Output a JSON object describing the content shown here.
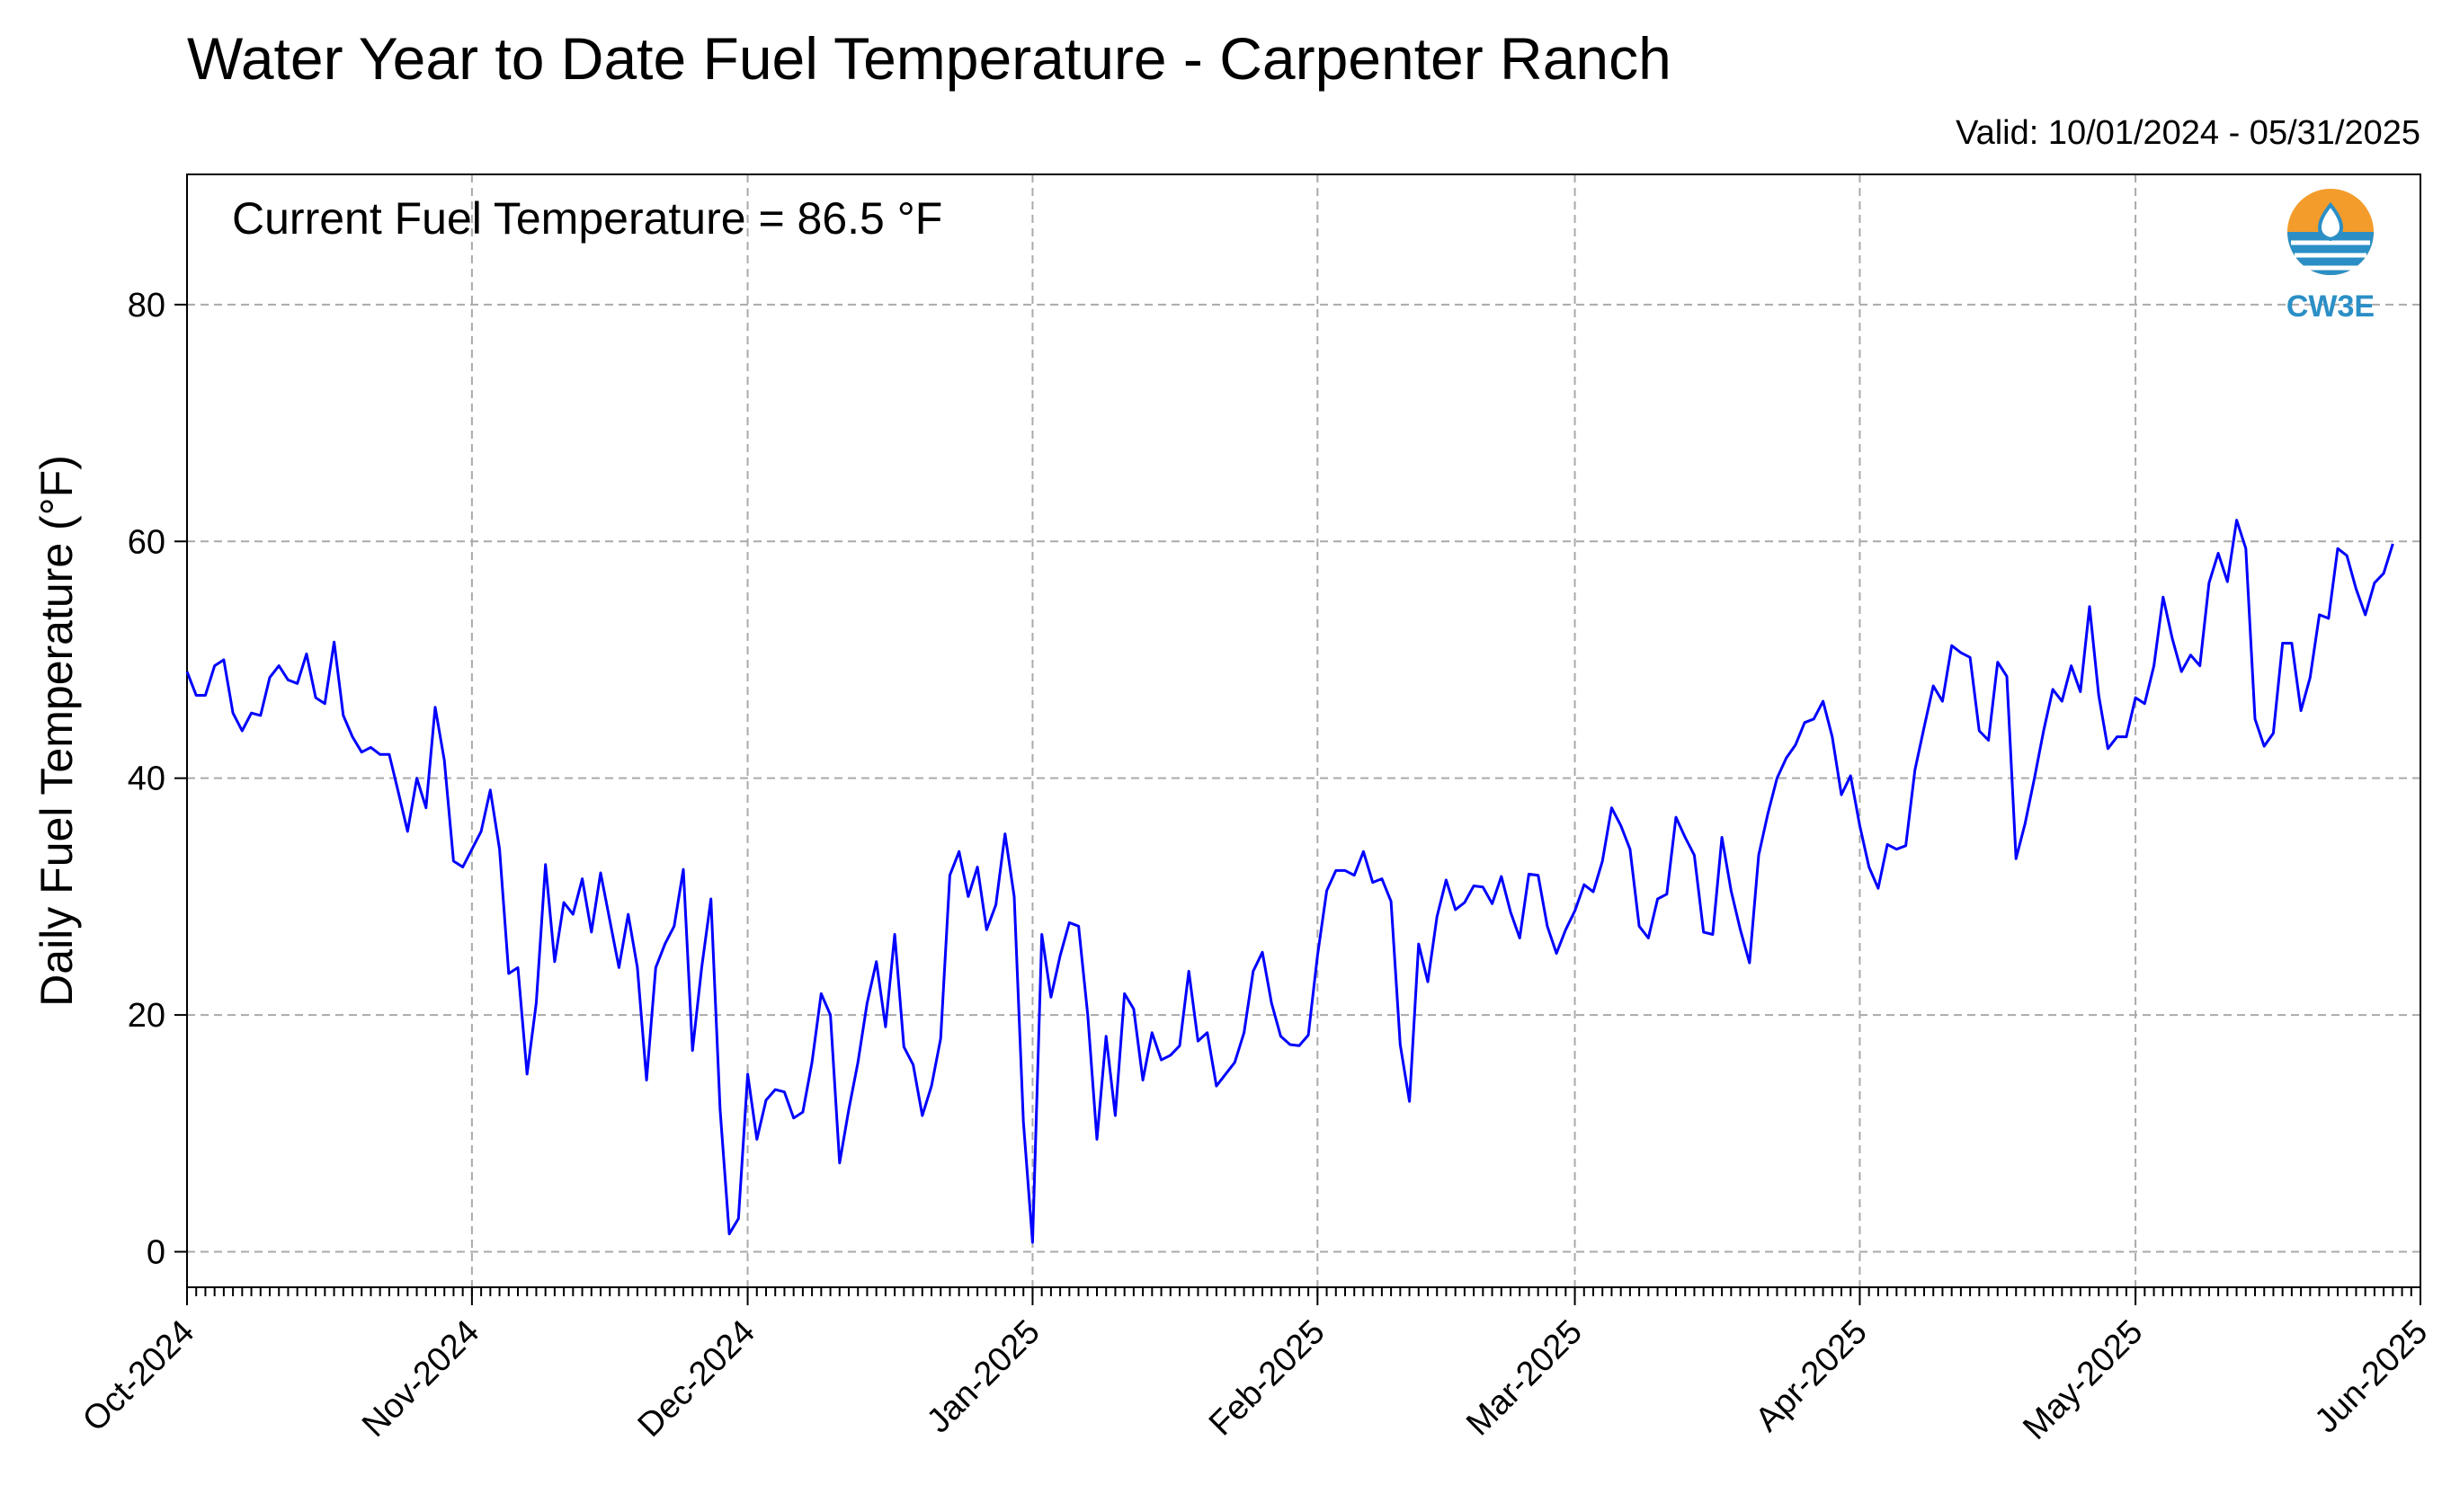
{
  "header": {
    "title": "Water Year to Date Fuel Temperature - Carpenter Ranch",
    "valid": "Valid: 10/01/2024 - 05/31/2025"
  },
  "annotation": "Current Fuel Temperature = 86.5 °F",
  "logo": {
    "text": "CW3E",
    "colors": {
      "sun": "#f39c2b",
      "water": "#2b8fc6"
    }
  },
  "chart_data": {
    "type": "line",
    "title": "Water Year to Date Fuel Temperature - Carpenter Ranch",
    "ylabel": "Daily Fuel Temperature (°F)",
    "xlabel": "",
    "ylim": [
      -3,
      91
    ],
    "xlim": [
      "2024-10-01",
      "2025-06-01"
    ],
    "yticks": [
      0,
      20,
      40,
      60,
      80
    ],
    "xticks": [
      {
        "label": "Oct-2024",
        "date": "2024-10-01"
      },
      {
        "label": "Nov-2024",
        "date": "2024-11-01"
      },
      {
        "label": "Dec-2024",
        "date": "2024-12-01"
      },
      {
        "label": "Jan-2025",
        "date": "2025-01-01"
      },
      {
        "label": "Feb-2025",
        "date": "2025-02-01"
      },
      {
        "label": "Mar-2025",
        "date": "2025-03-01"
      },
      {
        "label": "Apr-2025",
        "date": "2025-04-01"
      },
      {
        "label": "May-2025",
        "date": "2025-05-01"
      },
      {
        "label": "Jun-2025",
        "date": "2025-06-01"
      }
    ],
    "grid": true,
    "color": "#0000ff",
    "series": [
      {
        "start": "2024-10-01",
        "values": [
          49,
          47,
          47,
          49.5,
          50,
          45.5,
          44,
          45.5,
          45.3,
          48.5,
          49.5,
          48.3,
          48,
          50.5,
          46.8,
          46.3,
          51.5,
          45.3,
          43.5,
          42.2,
          42.6,
          42,
          42,
          38.8,
          35.5,
          40,
          37.5,
          46,
          41.5,
          33,
          32.5,
          34,
          35.5,
          39,
          34,
          23.5,
          24,
          15,
          21,
          32.7,
          24.5,
          29.5,
          28.5,
          31.5,
          27,
          32,
          28,
          24,
          28.5,
          24,
          14.5,
          24,
          26,
          27.5,
          32.3,
          17,
          24,
          29.8,
          12,
          1.5,
          2.8,
          15,
          9.5,
          12.8,
          13.7,
          13.5,
          11.3,
          11.8,
          16,
          21.8,
          20,
          7.5,
          12,
          16,
          21,
          24.5,
          19,
          26.8,
          17.3,
          15.8,
          11.5,
          14,
          18,
          31.8,
          33.8,
          30,
          32.5,
          27.2,
          29.3,
          35.3,
          30,
          11,
          0.8,
          26.8,
          21.5,
          25,
          27.8,
          27.5,
          20,
          9.5,
          18.2,
          11.5,
          21.8,
          20.5,
          14.5,
          18.5,
          16.2,
          16.6,
          17.4,
          23.7,
          17.8,
          18.5,
          14,
          15,
          16,
          18.5,
          23.7,
          25.3,
          21,
          18.2,
          17.5,
          17.4,
          18.3,
          25,
          30.5,
          32.2,
          32.2,
          31.8,
          33.8,
          31.2,
          31.5,
          29.6,
          17.5,
          12.7,
          26,
          22.8,
          28.3,
          31.4,
          28.9,
          29.5,
          30.9,
          30.8,
          29.4,
          31.7,
          28.7,
          26.5,
          31.9,
          31.8,
          27.5,
          25.2,
          27.2,
          28.8,
          31,
          30.4,
          33,
          37.5,
          36,
          34,
          27.5,
          26.5,
          29.8,
          30.2,
          36.7,
          35,
          33.5,
          27,
          26.8,
          35,
          30.5,
          27.2,
          24.4,
          33.5,
          37,
          40,
          41.7,
          42.8,
          44.7,
          45,
          46.5,
          43.5,
          38.6,
          40.2,
          36,
          32.5,
          30.7,
          34.4,
          34,
          34.3,
          40.7,
          44.3,
          47.8,
          46.5,
          51.2,
          50.6,
          50.2,
          44,
          43.2,
          49.8,
          48.6,
          33.2,
          36.2,
          40,
          44,
          47.5,
          46.5,
          49.5,
          47.3,
          54.5,
          47,
          42.5,
          43.5,
          43.5,
          46.8,
          46.3,
          49.5,
          55.3,
          51.8,
          49,
          50.4,
          49.5,
          56.5,
          59,
          56.6,
          61.8,
          59.4,
          45,
          42.7,
          43.8,
          51.4,
          51.4,
          45.7,
          48.5,
          53.8,
          53.5,
          59.4,
          58.8,
          56,
          53.8,
          56.5,
          57.3,
          59.8
        ]
      }
    ]
  }
}
